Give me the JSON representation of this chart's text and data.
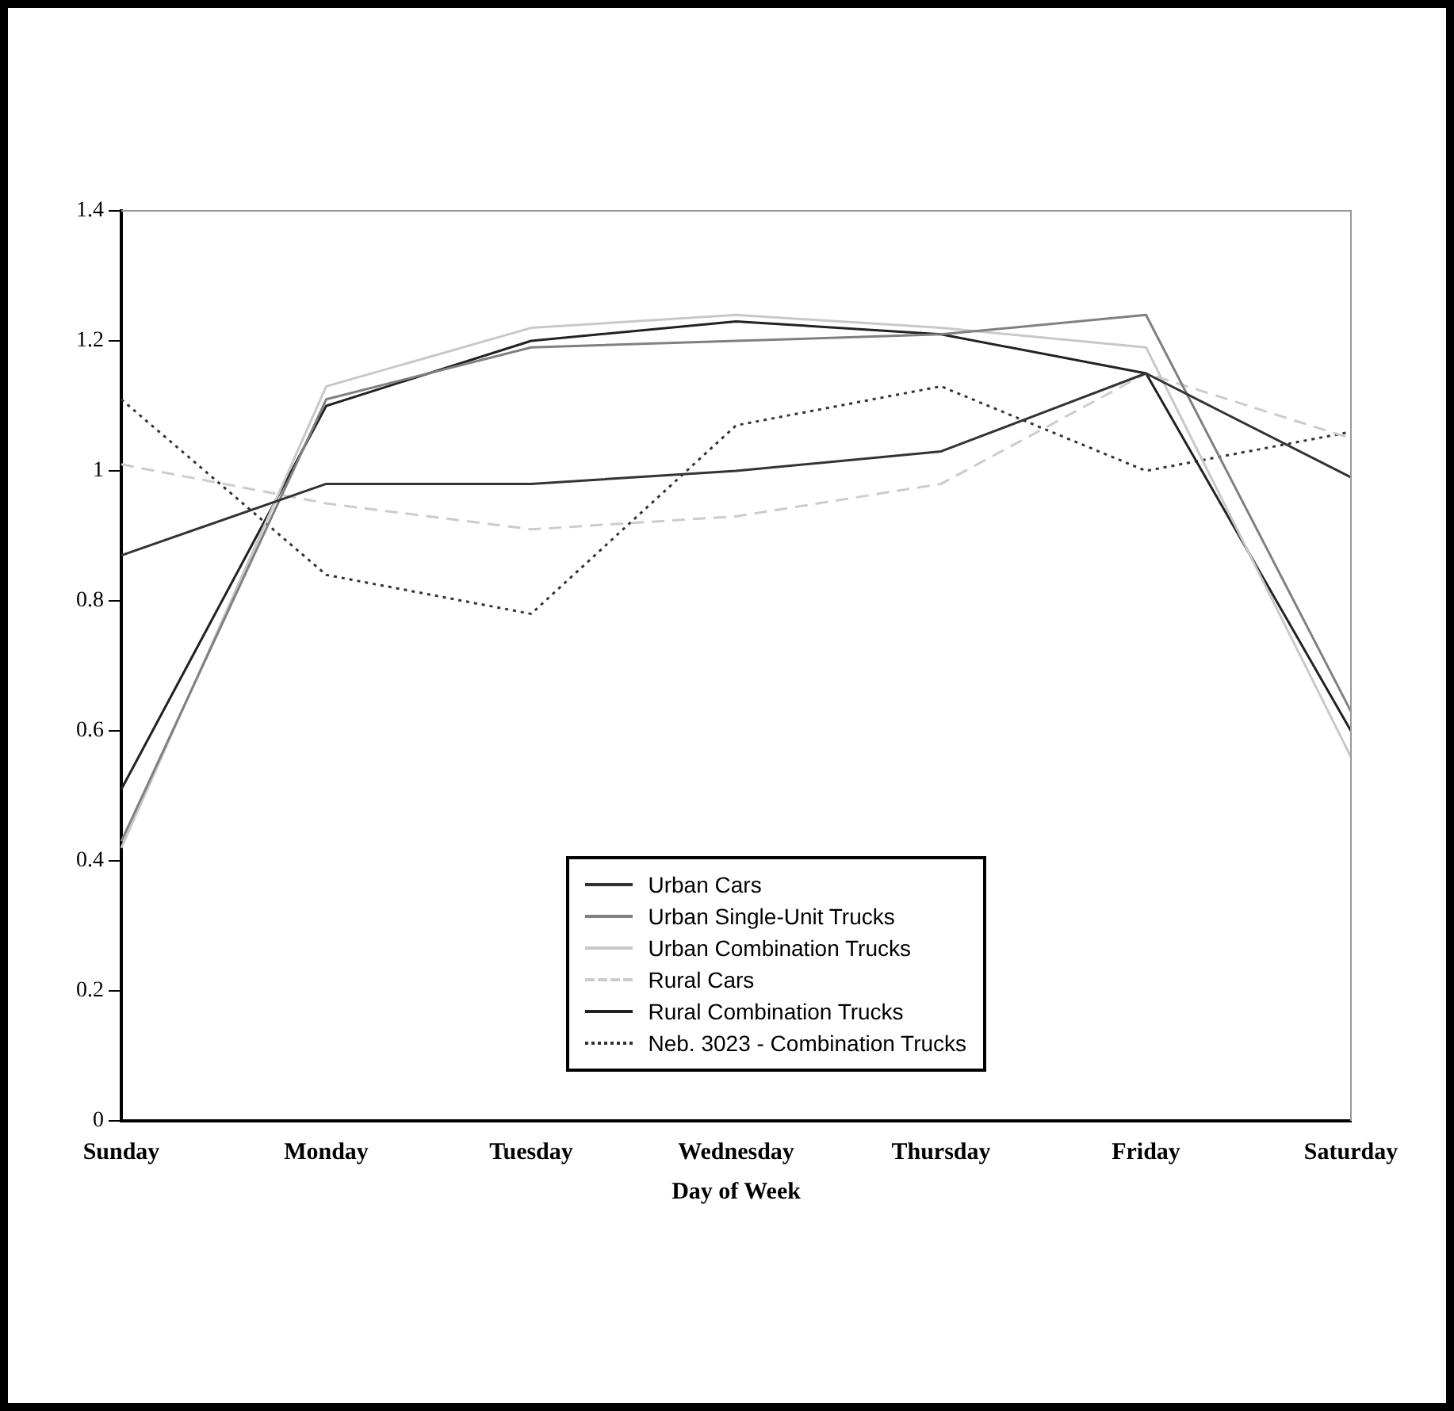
{
  "chart_data": {
    "type": "line",
    "xlabel": "Day of Week",
    "categories": [
      "Sunday",
      "Monday",
      "Tuesday",
      "Wednesday",
      "Thursday",
      "Friday",
      "Saturday"
    ],
    "ylim": [
      0,
      1.4
    ],
    "yticks": [
      0,
      0.2,
      0.4,
      0.6,
      0.8,
      1,
      1.2,
      1.4
    ],
    "grid": false,
    "legend": "bottom",
    "marker": "none",
    "series": [
      {
        "name": "Urban Cars",
        "color": "#333333",
        "line_style": "solid",
        "values": [
          0.87,
          0.98,
          0.98,
          1.0,
          1.03,
          1.15,
          0.99
        ]
      },
      {
        "name": "Urban Single-Unit Trucks",
        "color": "#808080",
        "line_style": "solid",
        "values": [
          0.43,
          1.11,
          1.19,
          1.2,
          1.21,
          1.24,
          0.63
        ]
      },
      {
        "name": "Urban Combination Trucks",
        "color": "#c8c8c8",
        "line_style": "solid",
        "values": [
          0.42,
          1.13,
          1.22,
          1.24,
          1.22,
          1.19,
          0.56
        ]
      },
      {
        "name": "Rural Cars",
        "color": "#cccccc",
        "line_style": "dashed",
        "values": [
          1.01,
          0.95,
          0.91,
          0.93,
          0.98,
          1.15,
          1.05
        ]
      },
      {
        "name": "Rural Combination Trucks",
        "color": "#222222",
        "line_style": "solid",
        "values": [
          0.51,
          1.1,
          1.2,
          1.23,
          1.21,
          1.15,
          0.6
        ]
      },
      {
        "name": "Neb. 3023 - Combination Trucks",
        "color": "#333333",
        "line_style": "dotted",
        "values": [
          1.11,
          0.84,
          0.78,
          1.07,
          1.13,
          1.0,
          1.06
        ]
      }
    ]
  }
}
